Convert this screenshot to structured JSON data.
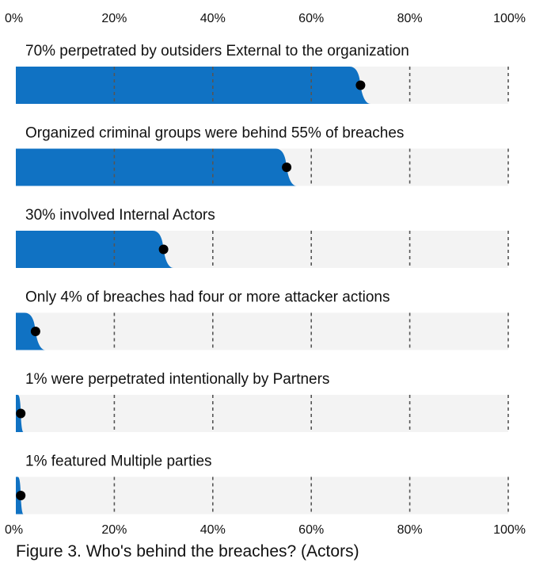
{
  "chart_data": {
    "type": "bar",
    "orientation": "horizontal",
    "categories": [
      "70% perpetrated by outsiders External to the organization",
      "Organized criminal groups were behind 55% of breaches",
      "30% involved Internal Actors",
      "Only 4% of breaches had four or more attacker actions",
      "1% were perpetrated intentionally by Partners",
      "1% featured Multiple parties"
    ],
    "values": [
      70,
      55,
      30,
      4,
      1,
      1
    ],
    "xlim": [
      0,
      100
    ],
    "ticks": [
      0,
      20,
      40,
      60,
      80,
      100
    ],
    "tick_labels": [
      "0%",
      "20%",
      "40%",
      "60%",
      "80%",
      "100%"
    ],
    "tick_label_positions": [
      "top",
      "bottom"
    ],
    "grid": "dashed vertical",
    "colors": {
      "bar": "#1072c3",
      "track": "#f3f3f3",
      "marker": "#000000",
      "grid": "#555555"
    },
    "title": "",
    "xlabel": "",
    "ylabel": ""
  },
  "caption": "Figure 3. Who's behind the breaches? (Actors)"
}
